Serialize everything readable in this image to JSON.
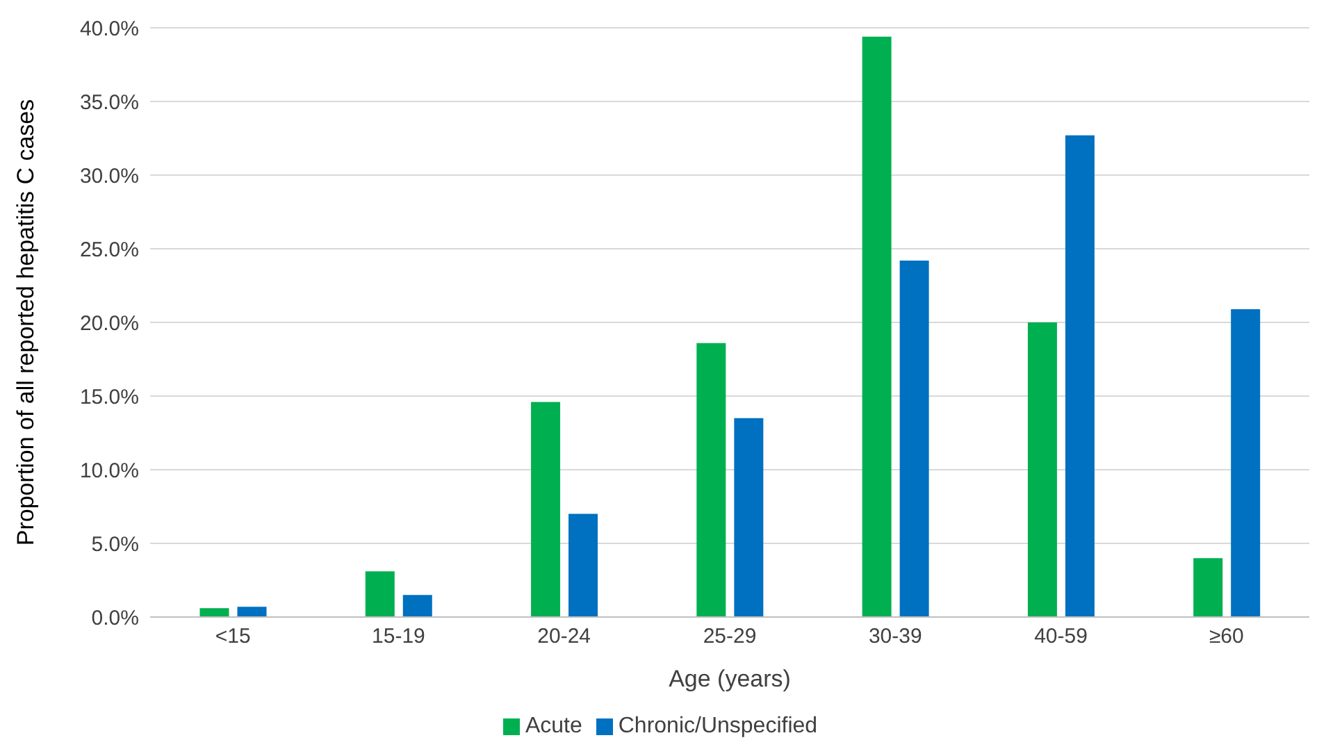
{
  "chart_data": {
    "type": "bar",
    "xlabel": "Age (years)",
    "ylabel": "Proportion of all reported hepatitis C cases",
    "categories": [
      "<15",
      "15-19",
      "20-24",
      "25-29",
      "30-39",
      "40-59",
      "≥60"
    ],
    "series": [
      {
        "name": "Acute",
        "color": "#00b050",
        "values": [
          0.6,
          3.1,
          14.6,
          18.6,
          39.4,
          20.0,
          4.0
        ]
      },
      {
        "name": "Chronic/Unspecified",
        "color": "#0070c0",
        "values": [
          0.7,
          1.5,
          7.0,
          13.5,
          24.2,
          32.7,
          20.9
        ]
      }
    ],
    "ylim": [
      0,
      40
    ],
    "yticks": [
      {
        "value": 0,
        "label": "0.0%"
      },
      {
        "value": 5,
        "label": "5.0%"
      },
      {
        "value": 10,
        "label": "10.0%"
      },
      {
        "value": 15,
        "label": "15.0%"
      },
      {
        "value": 20,
        "label": "20.0%"
      },
      {
        "value": 25,
        "label": "25.0%"
      },
      {
        "value": 30,
        "label": "30.0%"
      },
      {
        "value": 35,
        "label": "35.0%"
      },
      {
        "value": 40,
        "label": "40.0%"
      }
    ],
    "grid": "y",
    "legend": "bottom"
  }
}
